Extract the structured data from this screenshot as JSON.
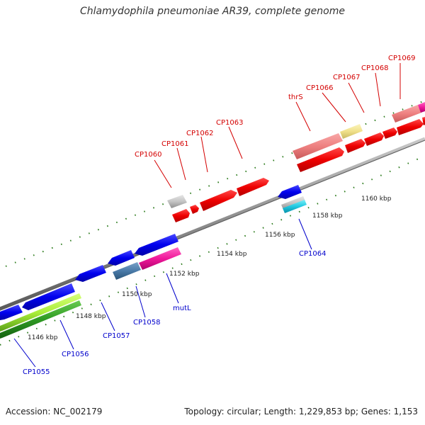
{
  "title": "Chlamydophila pneumoniae AR39, complete genome",
  "footer": {
    "accession": "Accession: NC_002179",
    "summary": "Topology: circular; Length: 1,229,853 bp; Genes: 1,153"
  },
  "colors": {
    "forward_label": "#d40000",
    "reverse_label": "#0000cc",
    "backbone": "#8c8c8c",
    "tick": "#2a7a1a"
  },
  "scale_ticks": [
    "1146 kbp",
    "1148 kbp",
    "1150 kbp",
    "1152 kbp",
    "1154 kbp",
    "1156 kbp",
    "1158 kbp",
    "1160 kbp"
  ],
  "forward_genes": [
    "CP1060",
    "CP1061",
    "CP1062",
    "CP1063",
    "thrS",
    "CP1066",
    "CP1067",
    "CP1068",
    "CP1069"
  ],
  "reverse_genes": [
    "CP1055",
    "CP1056",
    "CP1057",
    "CP1058",
    "mutL",
    "CP1064"
  ]
}
